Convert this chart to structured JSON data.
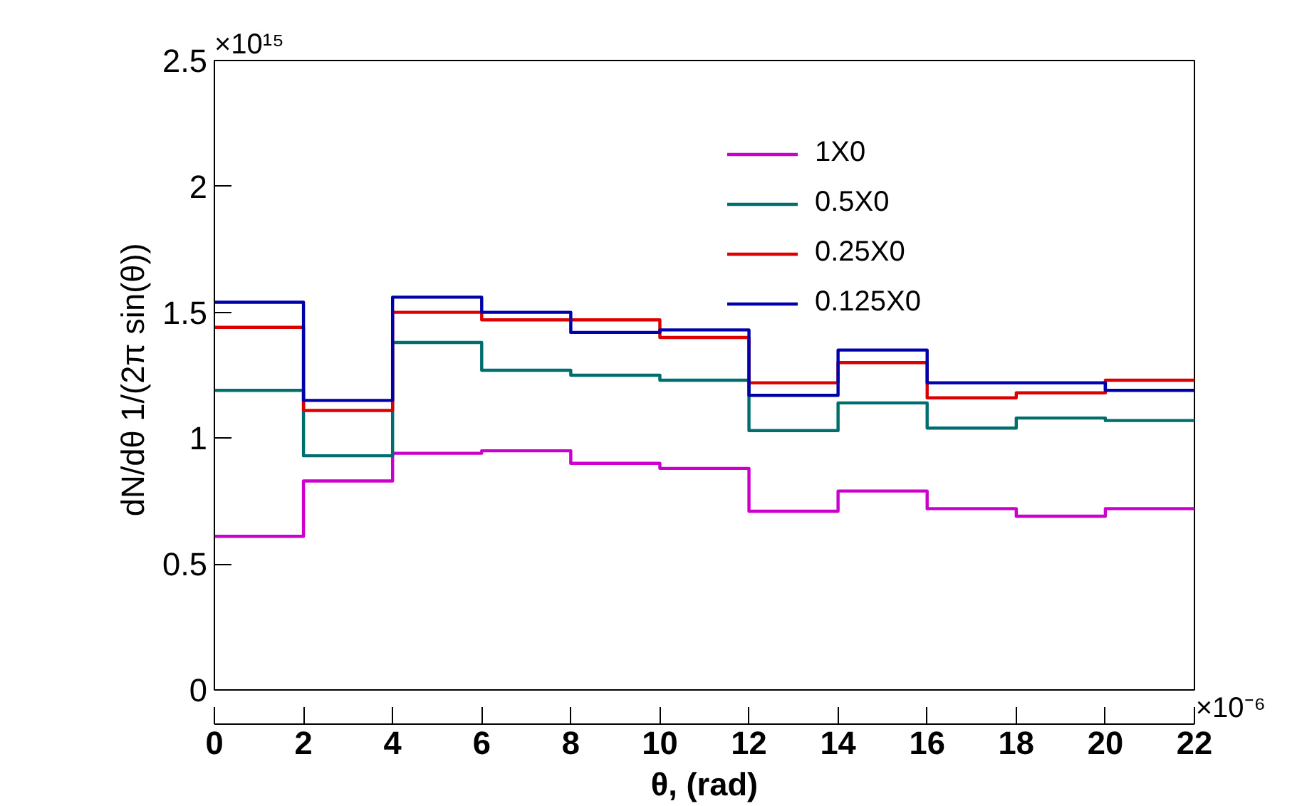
{
  "chart_data": {
    "type": "histogram",
    "xlabel": "θ, (rad)",
    "ylabel": "dN/dθ  1/(2π sin(θ))",
    "bins": [
      0,
      2,
      4,
      6,
      8,
      10,
      12,
      14,
      16,
      18,
      20,
      22
    ],
    "series": [
      {
        "name": "1X0",
        "color": "#cc00cc",
        "values": [
          0.61,
          0.83,
          0.94,
          0.95,
          0.9,
          0.88,
          0.71,
          0.79,
          0.72,
          0.69,
          0.72
        ]
      },
      {
        "name": "0.5X0",
        "color": "#006e6e",
        "values": [
          1.19,
          0.93,
          1.38,
          1.27,
          1.25,
          1.23,
          1.03,
          1.14,
          1.04,
          1.08,
          1.07
        ]
      },
      {
        "name": "0.25X0",
        "color": "#dd0000",
        "values": [
          1.44,
          1.11,
          1.5,
          1.47,
          1.47,
          1.4,
          1.22,
          1.3,
          1.16,
          1.18,
          1.23
        ]
      },
      {
        "name": "0.125X0",
        "color": "#0000aa",
        "values": [
          1.54,
          1.15,
          1.56,
          1.5,
          1.42,
          1.43,
          1.17,
          1.35,
          1.22,
          1.22,
          1.19
        ]
      }
    ],
    "xlim": [
      0,
      22
    ],
    "ylim": [
      0,
      2.5
    ],
    "xticks": [
      0,
      2,
      4,
      6,
      8,
      10,
      12,
      14,
      16,
      18,
      20,
      22
    ],
    "yticks": [
      0,
      0.5,
      1,
      1.5,
      2,
      2.5
    ],
    "annotations": [
      "×10¹⁵",
      "×10⁻⁶"
    ],
    "grid": false,
    "legend": "top right"
  }
}
